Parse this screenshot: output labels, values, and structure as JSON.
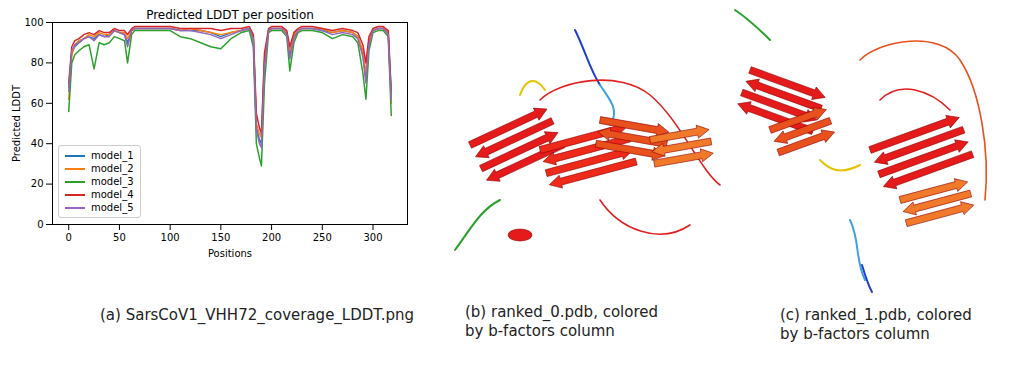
{
  "chart_data": {
    "type": "line",
    "title": "Predicted LDDT per position",
    "x_label": "Positions",
    "y_label": "Predicted LDDT",
    "caption": "(a) SarsCoV1_VHH72_coverage_LDDT.png",
    "xlim": [
      -16,
      334
    ],
    "xticks": [
      0,
      50,
      100,
      150,
      200,
      250,
      300
    ],
    "ylim": [
      0,
      100
    ],
    "yticks": [
      0,
      20,
      40,
      60,
      80,
      100
    ],
    "grid": false,
    "legend": "lower left",
    "x": [
      0,
      3,
      6,
      10,
      15,
      20,
      25,
      30,
      35,
      40,
      45,
      50,
      55,
      58,
      62,
      65,
      70,
      80,
      90,
      100,
      110,
      120,
      130,
      140,
      150,
      160,
      170,
      178,
      182,
      185,
      188,
      190,
      193,
      197,
      200,
      205,
      210,
      215,
      218,
      222,
      226,
      230,
      240,
      250,
      260,
      270,
      280,
      285,
      290,
      293,
      296,
      300,
      305,
      310,
      315,
      318
    ],
    "series": [
      {
        "name": "model_1",
        "color": "#1f77b4",
        "values": [
          68,
          85,
          88,
          90,
          92,
          93,
          92,
          94,
          93,
          94,
          96,
          95,
          94,
          90,
          96,
          97,
          97,
          97,
          97,
          97,
          96,
          96,
          96,
          95,
          93,
          95,
          96,
          97,
          92,
          48,
          42,
          40,
          80,
          96,
          97,
          97,
          97,
          95,
          84,
          93,
          96,
          97,
          97,
          96,
          95,
          96,
          95,
          93,
          85,
          72,
          90,
          96,
          97,
          97,
          95,
          64
        ]
      },
      {
        "name": "model_2",
        "color": "#ff7f0e",
        "values": [
          62,
          84,
          89,
          91,
          92,
          94,
          93,
          95,
          94,
          94,
          96,
          95,
          95,
          92,
          96,
          97,
          97,
          97,
          97,
          97,
          96,
          97,
          96,
          95,
          94,
          95,
          96,
          97,
          93,
          50,
          45,
          43,
          82,
          96,
          97,
          97,
          97,
          95,
          86,
          94,
          96,
          97,
          97,
          97,
          95,
          96,
          95,
          93,
          86,
          75,
          91,
          96,
          97,
          97,
          95,
          60
        ]
      },
      {
        "name": "model_3",
        "color": "#2ca02c",
        "values": [
          56,
          80,
          84,
          86,
          88,
          89,
          77,
          90,
          89,
          90,
          93,
          92,
          91,
          80,
          94,
          96,
          96,
          96,
          96,
          96,
          93,
          92,
          90,
          88,
          87,
          92,
          95,
          96,
          88,
          40,
          33,
          29,
          70,
          95,
          96,
          96,
          96,
          93,
          76,
          90,
          95,
          96,
          96,
          95,
          92,
          94,
          93,
          90,
          75,
          62,
          86,
          95,
          96,
          96,
          93,
          54
        ]
      },
      {
        "name": "model_4",
        "color": "#d62728",
        "values": [
          70,
          88,
          91,
          92,
          94,
          95,
          94,
          96,
          95,
          95,
          97,
          96,
          96,
          94,
          97,
          98,
          98,
          98,
          98,
          98,
          97,
          97,
          97,
          97,
          96,
          97,
          97,
          98,
          94,
          55,
          48,
          45,
          85,
          97,
          98,
          98,
          98,
          96,
          88,
          95,
          97,
          98,
          98,
          97,
          96,
          97,
          96,
          95,
          89,
          80,
          93,
          97,
          98,
          98,
          96,
          66
        ]
      },
      {
        "name": "model_5",
        "color": "#9467bd",
        "values": [
          66,
          86,
          89,
          90,
          92,
          93,
          91,
          94,
          93,
          93,
          96,
          95,
          94,
          88,
          96,
          97,
          97,
          97,
          97,
          97,
          96,
          96,
          95,
          94,
          92,
          94,
          96,
          97,
          92,
          47,
          40,
          38,
          78,
          96,
          97,
          97,
          97,
          94,
          82,
          92,
          96,
          97,
          97,
          96,
          94,
          95,
          94,
          92,
          83,
          70,
          89,
          96,
          97,
          97,
          94,
          62
        ]
      }
    ]
  },
  "panels": [
    {
      "caption": [
        "(b) ranked_0.pdb, colored",
        "by b-factors column"
      ]
    },
    {
      "caption": [
        "(c) ranked_1.pdb, colored",
        "by b-factors column"
      ]
    }
  ]
}
